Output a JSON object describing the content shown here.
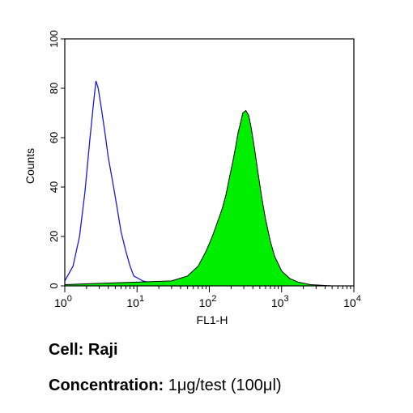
{
  "chart_data": {
    "type": "area",
    "xlabel": "FL1-H",
    "ylabel": "Counts",
    "xscale": "log",
    "xlim": [
      1,
      10000
    ],
    "ylim": [
      0,
      100
    ],
    "x_ticks": [
      {
        "base": "10",
        "exp": "0"
      },
      {
        "base": "10",
        "exp": "1"
      },
      {
        "base": "10",
        "exp": "2"
      },
      {
        "base": "10",
        "exp": "3"
      },
      {
        "base": "10",
        "exp": "4"
      }
    ],
    "y_ticks": [
      "0",
      "20",
      "40",
      "60",
      "80",
      "100"
    ],
    "grid": false,
    "series": [
      {
        "color": "#1a1adb",
        "style": "outline",
        "x": [
          1.0,
          1.3,
          1.6,
          1.9,
          2.2,
          2.5,
          2.7,
          2.9,
          3.2,
          3.6,
          4.0,
          4.6,
          5.2,
          6.0,
          7.0,
          8.0,
          9.0,
          10.5,
          12,
          14,
          17,
          22,
          30,
          50,
          100
        ],
        "y": [
          2,
          8,
          20,
          38,
          58,
          74,
          83,
          80,
          72,
          62,
          52,
          42,
          33,
          22,
          14,
          8,
          4,
          3,
          2,
          1.5,
          1,
          0.5,
          0,
          0,
          0
        ]
      },
      {
        "color": "#00ee00",
        "style": "filled",
        "x": [
          1.0,
          3,
          10,
          30,
          50,
          70,
          90,
          110,
          130,
          150,
          170,
          190,
          210,
          230,
          250,
          270,
          290,
          320,
          350,
          380,
          420,
          470,
          530,
          600,
          700,
          800,
          1000,
          1300,
          1700,
          2500,
          5000,
          10000
        ],
        "y": [
          0.5,
          1,
          1.5,
          2,
          4,
          8,
          14,
          20,
          26,
          31,
          37,
          44,
          50,
          56,
          62,
          66,
          70,
          71,
          69,
          64,
          56,
          46,
          36,
          27,
          18,
          12,
          6,
          3,
          1.5,
          0.5,
          0,
          0
        ]
      }
    ]
  },
  "captions": {
    "cell": "Cell: Raji",
    "concentration_label": "Concentration:",
    "concentration_value": "1μg/test (100μl)"
  }
}
